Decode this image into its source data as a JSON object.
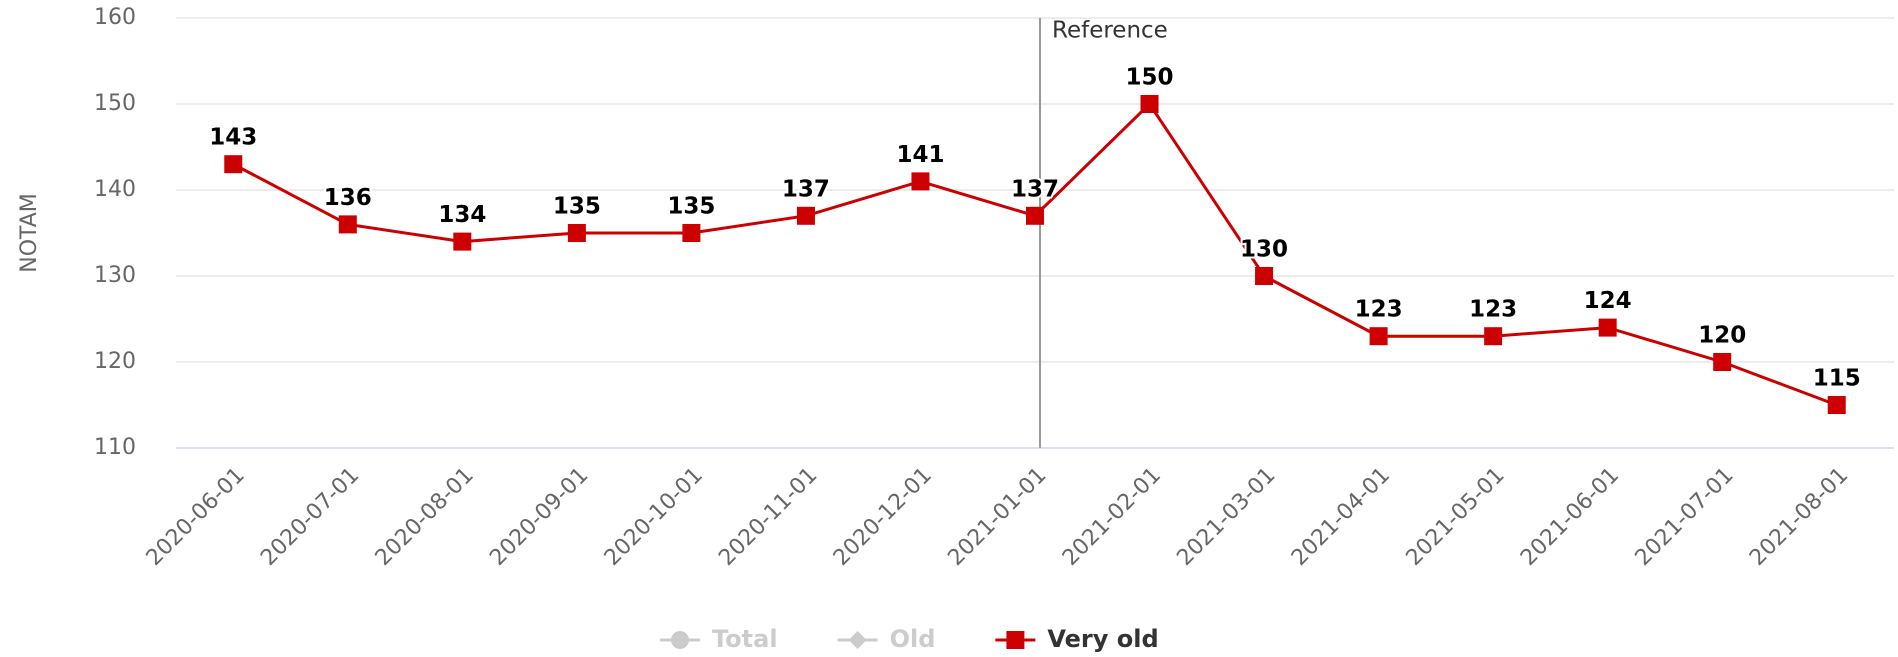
{
  "chart_data": {
    "type": "line",
    "y_label": "NOTAM",
    "categories": [
      "2020-06-01",
      "2020-07-01",
      "2020-08-01",
      "2020-09-01",
      "2020-10-01",
      "2020-11-01",
      "2020-12-01",
      "2021-01-01",
      "2021-02-01",
      "2021-03-01",
      "2021-04-01",
      "2021-05-01",
      "2021-06-01",
      "2021-07-01",
      "2021-08-01"
    ],
    "series": [
      {
        "name": "Total",
        "marker": "circle",
        "visible": false,
        "values": [
          null,
          null,
          null,
          null,
          null,
          null,
          null,
          null,
          null,
          null,
          null,
          null,
          null,
          null,
          null
        ]
      },
      {
        "name": "Old",
        "marker": "diamond",
        "visible": false,
        "values": [
          null,
          null,
          null,
          null,
          null,
          null,
          null,
          null,
          null,
          null,
          null,
          null,
          null,
          null,
          null
        ]
      },
      {
        "name": "Very old",
        "marker": "square",
        "visible": true,
        "color": "#cc0000",
        "values": [
          143,
          136,
          134,
          135,
          135,
          137,
          141,
          137,
          150,
          130,
          123,
          123,
          124,
          120,
          115
        ]
      }
    ],
    "reference": {
      "x": "2021-01-01",
      "label": "Reference"
    },
    "ylim": [
      110,
      160
    ],
    "yticks": [
      110,
      120,
      130,
      140,
      150,
      160
    ],
    "grid": true,
    "data_labels": true,
    "legend": "bottom"
  }
}
